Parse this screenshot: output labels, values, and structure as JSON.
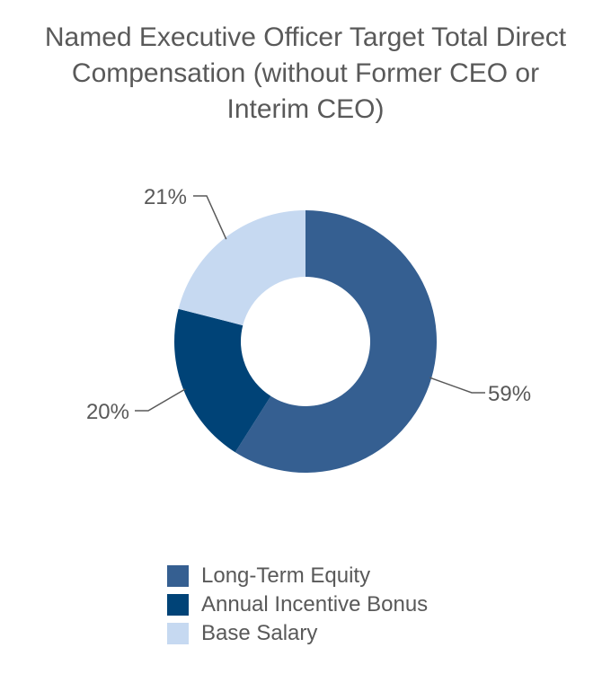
{
  "chart_data": {
    "type": "pie",
    "style": "donut",
    "title": "Named Executive Officer Target Total Direct Compensation (without Former CEO or Interim CEO)",
    "categories": [
      "Long-Term Equity",
      "Annual Incentive Bonus",
      "Base Salary"
    ],
    "values": [
      59,
      20,
      21
    ],
    "labels": [
      "59%",
      "20%",
      "21%"
    ],
    "colors": [
      "#355F91",
      "#004377",
      "#C6D9F1"
    ],
    "legend": "bottom"
  }
}
